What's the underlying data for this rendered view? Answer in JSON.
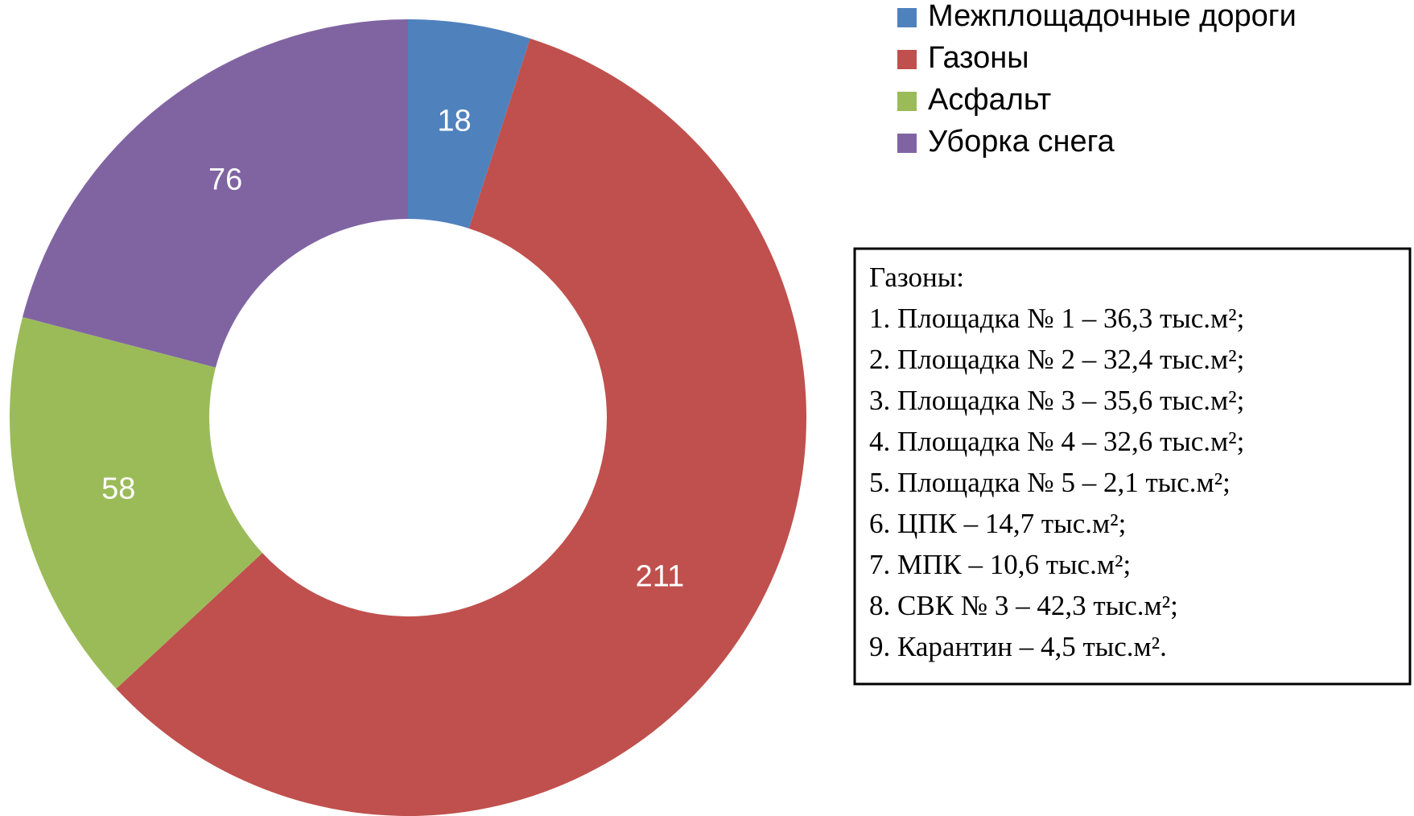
{
  "chart_data": {
    "type": "donut",
    "categories": [
      "Межплощадочные дороги",
      "Газоны",
      "Асфальт",
      "Уборка снега"
    ],
    "values": [
      18,
      211,
      58,
      76
    ],
    "colors": [
      "#4f81bd",
      "#c0504d",
      "#9bbb59",
      "#8064a2"
    ],
    "legend": "top-right",
    "annotation": {
      "title": "Газоны:",
      "items": [
        "1. Площадка № 1 – 36,3 тыс.м²;",
        "2. Площадка № 2 – 32,4 тыс.м²;",
        "3. Площадка № 3 – 35,6 тыс.м²;",
        "4. Площадка № 4 – 32,6 тыс.м²;",
        "5. Площадка № 5 – 2,1 тыс.м²;",
        "6. ЦПК – 14,7 тыс.м²;",
        "7. МПК – 10,6 тыс.м²;",
        "8. СВК № 3 – 42,3 тыс.м²;",
        "9. Карантин – 4,5 тыс.м²."
      ]
    }
  }
}
